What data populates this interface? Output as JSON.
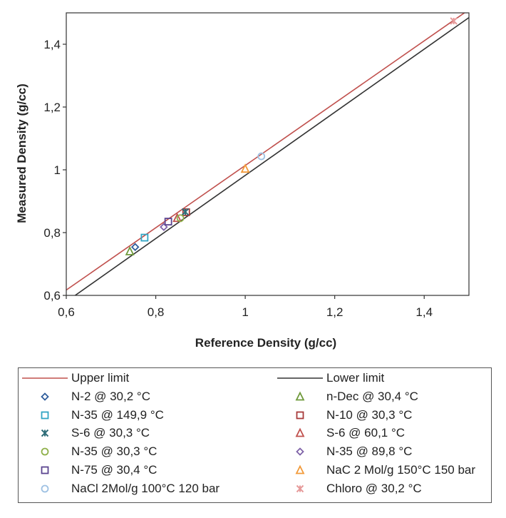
{
  "chart_data": {
    "type": "scatter",
    "xlabel": "Reference Density (g/cc)",
    "ylabel": "Measured Density (g/cc)",
    "xlim": [
      0.6,
      1.5
    ],
    "ylim": [
      0.6,
      1.5
    ],
    "xticks": [
      "0,6",
      "0,8",
      "1",
      "1,2",
      "1,4"
    ],
    "yticks": [
      "0,6",
      "0,8",
      "1",
      "1,2",
      "1,4"
    ],
    "grid": false,
    "legend_position": "bottom",
    "lines": [
      {
        "name": "Upper limit",
        "color": "#c0504d",
        "x": [
          0.6,
          1.5
        ],
        "y": [
          0.617,
          1.51
        ]
      },
      {
        "name": "Lower limit",
        "color": "#333333",
        "x": [
          0.61,
          1.5
        ],
        "y": [
          0.59,
          1.485
        ]
      }
    ],
    "series": [
      {
        "name": "N-2 @ 30,2 °C",
        "marker": "diamond",
        "color": "#2e5d9c",
        "points": [
          [
            0.754,
            0.754
          ]
        ]
      },
      {
        "name": "n-Dec @ 30,4 °C",
        "marker": "triangle",
        "color": "#6f9a3b",
        "points": [
          [
            0.742,
            0.74
          ]
        ]
      },
      {
        "name": "N-35 @ 149,9 °C",
        "marker": "square",
        "color": "#31a5c4",
        "points": [
          [
            0.775,
            0.784
          ]
        ]
      },
      {
        "name": "N-10 @ 30,3 °C",
        "marker": "square",
        "color": "#a83a3a",
        "points": [
          [
            0.868,
            0.865
          ]
        ]
      },
      {
        "name": "S-6 @ 30,3 °C",
        "marker": "star",
        "color": "#2e6d78",
        "points": [
          [
            0.866,
            0.866
          ]
        ]
      },
      {
        "name": "S-6 @ 60,1 °C",
        "marker": "triangle",
        "color": "#c0504d",
        "points": [
          [
            0.848,
            0.846
          ]
        ]
      },
      {
        "name": "N-35 @ 30,3 °C",
        "marker": "circle",
        "color": "#8fb04a",
        "points": [
          [
            0.855,
            0.846
          ]
        ]
      },
      {
        "name": "N-35 @ 89,8 °C",
        "marker": "diamond",
        "color": "#7f63a8",
        "points": [
          [
            0.818,
            0.818
          ]
        ]
      },
      {
        "name": "N-75 @ 30,4 °C",
        "marker": "square",
        "color": "#5b4590",
        "points": [
          [
            0.828,
            0.835
          ]
        ]
      },
      {
        "name": "NaC 2 Mol/g 150°C 150 bar",
        "marker": "triangle",
        "color": "#f29a3a",
        "points": [
          [
            1.0,
            1.003
          ]
        ]
      },
      {
        "name": "NaCl 2Mol/g 100°C 120 bar",
        "marker": "circle",
        "color": "#9ec1e3",
        "points": [
          [
            1.036,
            1.043
          ]
        ]
      },
      {
        "name": "Chloro @ 30,2 °C",
        "marker": "star",
        "color": "#e69a9a",
        "points": [
          [
            1.466,
            1.474
          ]
        ]
      }
    ]
  },
  "legend": {
    "items": [
      {
        "label": "Upper limit",
        "kind": "line",
        "color": "#c0504d"
      },
      {
        "label": "Lower limit",
        "kind": "line",
        "color": "#333333"
      },
      {
        "label": "N-2 @ 30,2 °C",
        "kind": "diamond",
        "color": "#2e5d9c"
      },
      {
        "label": "n-Dec @ 30,4 °C",
        "kind": "triangle",
        "color": "#6f9a3b"
      },
      {
        "label": "N-35 @ 149,9 °C",
        "kind": "square",
        "color": "#31a5c4"
      },
      {
        "label": "N-10 @ 30,3 °C",
        "kind": "square",
        "color": "#a83a3a"
      },
      {
        "label": "S-6 @ 30,3 °C",
        "kind": "star",
        "color": "#2e6d78"
      },
      {
        "label": "S-6 @ 60,1 °C",
        "kind": "triangle",
        "color": "#c0504d"
      },
      {
        "label": "N-35 @ 30,3 °C",
        "kind": "circle",
        "color": "#8fb04a"
      },
      {
        "label": "N-35 @ 89,8 °C",
        "kind": "diamond",
        "color": "#7f63a8"
      },
      {
        "label": "N-75 @ 30,4 °C",
        "kind": "square",
        "color": "#5b4590"
      },
      {
        "label": "NaC 2 Mol/g 150°C 150 bar",
        "kind": "triangle",
        "color": "#f29a3a"
      },
      {
        "label": "NaCl 2Mol/g 100°C 120 bar",
        "kind": "circle",
        "color": "#9ec1e3"
      },
      {
        "label": "Chloro @ 30,2 °C",
        "kind": "star",
        "color": "#e69a9a"
      }
    ]
  }
}
